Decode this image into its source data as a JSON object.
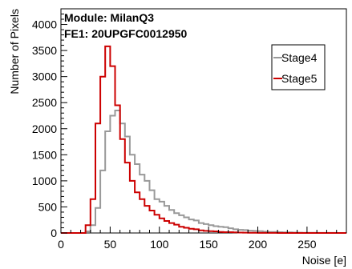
{
  "annotation": {
    "module": "Module: MilanQ3",
    "fe": "FE1: 20UPGFC0012950"
  },
  "chart_data": {
    "type": "line",
    "drawstyle": "steps",
    "xlabel": "Noise [e]",
    "ylabel": "Number of Pixels",
    "xlim": [
      0,
      290
    ],
    "ylim": [
      0,
      4300
    ],
    "bin_width": 5,
    "x_ticks": [
      0,
      50,
      100,
      150,
      200,
      250
    ],
    "y_ticks": [
      0,
      500,
      1000,
      1500,
      2000,
      2500,
      3000,
      3500,
      4000
    ],
    "legend_position": "top-right",
    "grid": false,
    "series": [
      {
        "name": "Stage4",
        "color": "#999999",
        "bin_lows": [
          0,
          5,
          10,
          15,
          20,
          25,
          30,
          35,
          40,
          45,
          50,
          55,
          60,
          65,
          70,
          75,
          80,
          85,
          90,
          95,
          100,
          105,
          110,
          115,
          120,
          125,
          130,
          135,
          140,
          145,
          150,
          155,
          160,
          165,
          170,
          175,
          180,
          185,
          190,
          195,
          200,
          205,
          210,
          215,
          220,
          225,
          230,
          235,
          240,
          245,
          250,
          255,
          260,
          265,
          270,
          275,
          280,
          285
        ],
        "values": [
          0,
          0,
          0,
          0,
          0,
          30,
          150,
          480,
          1200,
          1950,
          2250,
          2350,
          2100,
          1850,
          1500,
          1320,
          1120,
          1000,
          820,
          650,
          600,
          520,
          440,
          380,
          340,
          300,
          260,
          240,
          190,
          170,
          150,
          130,
          120,
          110,
          90,
          70,
          60,
          55,
          45,
          40,
          35,
          25,
          20,
          20,
          15,
          12,
          10,
          8,
          6,
          5,
          4,
          3,
          2,
          2,
          1,
          1,
          0,
          0
        ]
      },
      {
        "name": "Stage5",
        "color": "#cc0000",
        "bin_lows": [
          0,
          5,
          10,
          15,
          20,
          25,
          30,
          35,
          40,
          45,
          50,
          55,
          60,
          65,
          70,
          75,
          80,
          85,
          90,
          95,
          100,
          105,
          110,
          115,
          120,
          125,
          130,
          135,
          140,
          145,
          150,
          155,
          160,
          165,
          170,
          175,
          180,
          185,
          190,
          195,
          200,
          205,
          210,
          215,
          220,
          225,
          230,
          235,
          240,
          245,
          250,
          255,
          260,
          265,
          270,
          275,
          280,
          285
        ],
        "values": [
          0,
          0,
          0,
          0,
          0,
          150,
          650,
          2100,
          3000,
          3580,
          3200,
          2450,
          1800,
          1350,
          1000,
          780,
          650,
          520,
          430,
          350,
          280,
          230,
          190,
          160,
          120,
          100,
          80,
          70,
          50,
          40,
          35,
          30,
          20,
          15,
          15,
          10,
          8,
          6,
          5,
          3,
          2,
          2,
          1,
          1,
          0,
          0,
          0,
          0,
          0,
          0,
          0,
          0,
          0,
          0,
          0,
          0,
          0,
          0
        ]
      }
    ]
  }
}
